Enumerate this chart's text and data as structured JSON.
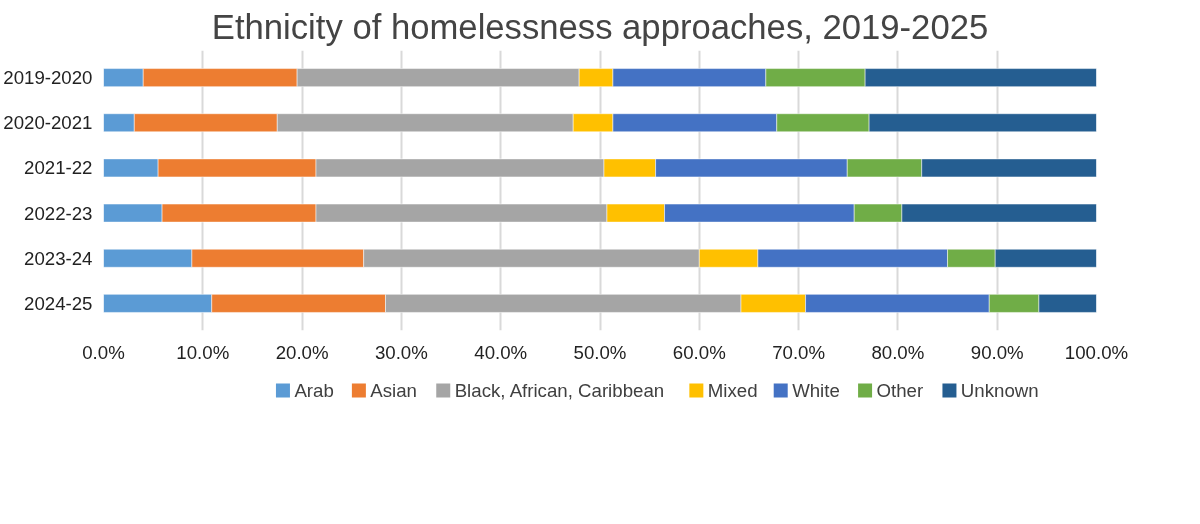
{
  "chart_data": {
    "type": "bar",
    "orientation": "horizontal",
    "stacked": true,
    "title": "Ethnicity of homelessness approaches, 2019-2025",
    "categories": [
      "2019-2020",
      "2020-2021",
      "2021-22",
      "2022-23",
      "2023-24",
      "2024-25"
    ],
    "series": [
      {
        "name": "Arab",
        "color": "#5b9bd5",
        "values": [
          4.0,
          3.1,
          5.5,
          5.9,
          8.9,
          10.9
        ]
      },
      {
        "name": "Asian",
        "color": "#ed7d31",
        "values": [
          15.5,
          14.4,
          15.9,
          15.5,
          17.3,
          17.5
        ]
      },
      {
        "name": "Black, African, Caribbean",
        "color": "#a5a5a5",
        "values": [
          28.4,
          29.8,
          29.0,
          29.3,
          33.8,
          35.8
        ]
      },
      {
        "name": "Mixed",
        "color": "#ffc000",
        "values": [
          3.4,
          4.0,
          5.2,
          5.8,
          5.9,
          6.5
        ]
      },
      {
        "name": "White",
        "color": "#4472c4",
        "values": [
          15.4,
          16.5,
          19.3,
          19.1,
          19.1,
          18.5
        ]
      },
      {
        "name": "Other",
        "color": "#70ad47",
        "values": [
          10.0,
          9.3,
          7.5,
          4.8,
          4.8,
          5.0
        ]
      },
      {
        "name": "Unknown",
        "color": "#255e91",
        "values": [
          23.3,
          22.9,
          17.6,
          19.6,
          10.2,
          5.8
        ]
      }
    ],
    "xlim": [
      0,
      100
    ],
    "xticks": [
      {
        "value": 0,
        "label": "0.0%"
      },
      {
        "value": 10,
        "label": "10.0%"
      },
      {
        "value": 20,
        "label": "20.0%"
      },
      {
        "value": 30,
        "label": "30.0%"
      },
      {
        "value": 40,
        "label": "40.0%"
      },
      {
        "value": 50,
        "label": "50.0%"
      },
      {
        "value": 60,
        "label": "60.0%"
      },
      {
        "value": 70,
        "label": "70.0%"
      },
      {
        "value": 80,
        "label": "80.0%"
      },
      {
        "value": 90,
        "label": "90.0%"
      },
      {
        "value": 100,
        "label": "100.0%"
      }
    ],
    "grid": "x",
    "legend": "bottom"
  }
}
